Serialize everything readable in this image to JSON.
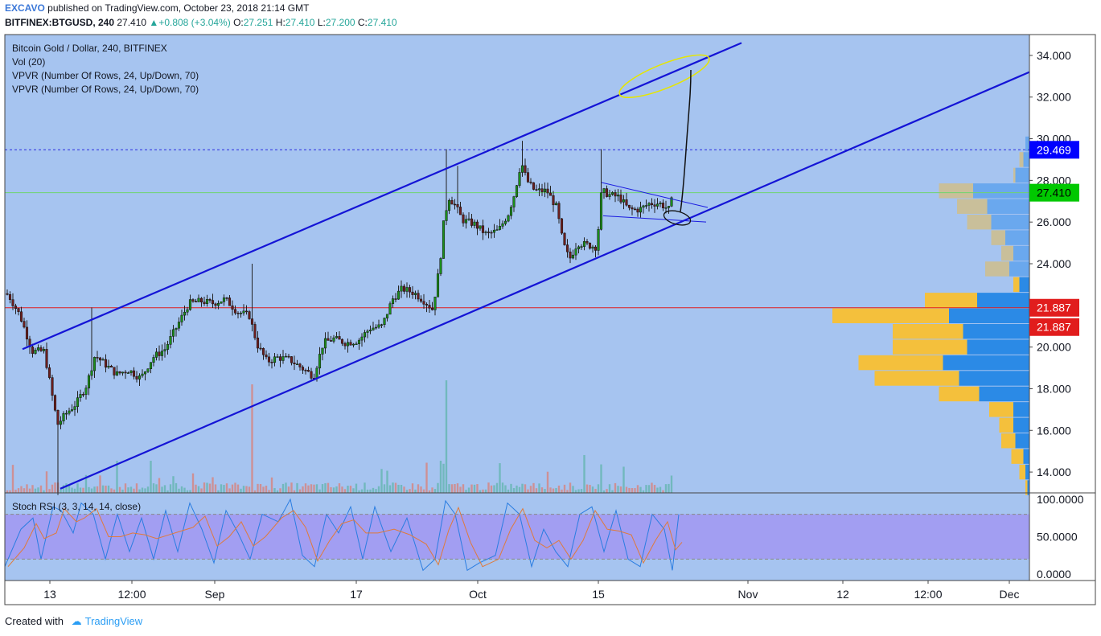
{
  "header": {
    "author": "EXCAVO",
    "published_text": "published on TradingView.com, October 23, 2018 21:14 GMT",
    "symbol": "BITFINEX:BTGUSD, 240",
    "last": "27.410",
    "change": "+0.808 (+3.04%)",
    "open_label": "O:",
    "open": "27.251",
    "high_label": "H:",
    "high": "27.410",
    "low_label": "L:",
    "low": "27.200",
    "close_label": "C:",
    "close": "27.410"
  },
  "legend": {
    "title": "Bitcoin Gold / Dollar, 240, BITFINEX",
    "vol": "Vol (20)",
    "vpvr1": "VPVR (Number Of Rows, 24, Up/Down, 70)",
    "vpvr2": "VPVR (Number Of Rows, 24, Up/Down, 70)",
    "stoch": "Stoch RSI (3, 3, 14, 14, close)"
  },
  "footer": {
    "created_with": "Created with",
    "brand": "TradingView"
  },
  "colors": {
    "price_bg": "#a6c4f0",
    "stoch_bg": "#a6c4f0",
    "stoch_band": "#a29ef2",
    "candle_up": "#1b8e1b",
    "candle_down": "#6b1e1e",
    "channel": "#1414d6",
    "support_line": "#e11d1d",
    "last_price": "#00c800",
    "high_marker": "#0000ff",
    "vpvr_up": "#2b8ae6",
    "vpvr_down": "#f4c03c"
  },
  "chart_data": {
    "type": "candlestick",
    "title": "Bitcoin Gold / Dollar, 240, BITFINEX",
    "y_axis_range": [
      13.0,
      35.0
    ],
    "y_ticks": [
      "34.000",
      "32.000",
      "30.000",
      "28.000",
      "26.000",
      "24.000",
      "22.000",
      "20.000",
      "18.000",
      "16.000",
      "14.000"
    ],
    "x_ticks": [
      "13",
      "12:00",
      "Sep",
      "17",
      "Oct",
      "15",
      "Nov",
      "12",
      "12:00",
      "Dec"
    ],
    "price_labels": [
      {
        "value": "29.469",
        "kind": "high"
      },
      {
        "value": "27.410",
        "kind": "last"
      },
      {
        "value": "21.887",
        "kind": "level"
      },
      {
        "value": "21.887",
        "kind": "level"
      }
    ],
    "close_path": [
      [
        0,
        22.9
      ],
      [
        12,
        22.4
      ],
      [
        25,
        21.5
      ],
      [
        40,
        19.8
      ],
      [
        55,
        19.8
      ],
      [
        68,
        17.0
      ],
      [
        72,
        16.3
      ],
      [
        82,
        16.8
      ],
      [
        95,
        17.3
      ],
      [
        108,
        18.2
      ],
      [
        118,
        19.6
      ],
      [
        130,
        19.2
      ],
      [
        145,
        18.7
      ],
      [
        160,
        18.9
      ],
      [
        175,
        18.5
      ],
      [
        190,
        19.5
      ],
      [
        205,
        19.9
      ],
      [
        220,
        21.0
      ],
      [
        235,
        22.1
      ],
      [
        250,
        22.2
      ],
      [
        265,
        22.1
      ],
      [
        280,
        22.3
      ],
      [
        295,
        21.7
      ],
      [
        310,
        21.5
      ],
      [
        320,
        20.1
      ],
      [
        332,
        19.3
      ],
      [
        345,
        19.5
      ],
      [
        360,
        19.4
      ],
      [
        375,
        19.0
      ],
      [
        390,
        18.6
      ],
      [
        402,
        20.2
      ],
      [
        415,
        20.4
      ],
      [
        430,
        20.2
      ],
      [
        445,
        20.3
      ],
      [
        460,
        20.9
      ],
      [
        475,
        21.0
      ],
      [
        488,
        22.3
      ],
      [
        500,
        22.8
      ],
      [
        515,
        22.6
      ],
      [
        528,
        22.2
      ],
      [
        538,
        21.8
      ],
      [
        547,
        24.0
      ],
      [
        552,
        26.1
      ],
      [
        558,
        27.2
      ],
      [
        566,
        26.8
      ],
      [
        575,
        26.1
      ],
      [
        590,
        25.9
      ],
      [
        605,
        25.4
      ],
      [
        620,
        25.6
      ],
      [
        632,
        26.4
      ],
      [
        640,
        27.4
      ],
      [
        648,
        28.9
      ],
      [
        655,
        28.0
      ],
      [
        665,
        27.5
      ],
      [
        680,
        27.5
      ],
      [
        692,
        26.7
      ],
      [
        700,
        25.0
      ],
      [
        708,
        24.2
      ],
      [
        718,
        25.0
      ],
      [
        730,
        24.9
      ],
      [
        742,
        24.8
      ],
      [
        748,
        27.5
      ],
      [
        758,
        27.3
      ],
      [
        770,
        27.2
      ],
      [
        782,
        26.6
      ],
      [
        795,
        26.6
      ],
      [
        808,
        26.9
      ],
      [
        820,
        26.9
      ],
      [
        832,
        26.6
      ],
      [
        838,
        27.41
      ]
    ],
    "ohlc_last": {
      "open": 27.251,
      "high": 27.41,
      "low": 27.2,
      "close": 27.41
    },
    "annotations": {
      "channel_upper": [
        [
          28,
          19.9
        ],
        [
          922,
          34.6
        ]
      ],
      "channel_lower": [
        [
          75,
          13.2
        ],
        [
          1280,
          33.2
        ]
      ],
      "horizontal_levels": [
        {
          "price": 21.887,
          "color": "red"
        },
        {
          "price": 29.469,
          "color": "blue",
          "dashed": true
        },
        {
          "price": 27.41,
          "color": "green"
        }
      ],
      "triangle": {
        "top": [
          [
            748,
            27.9
          ],
          [
            880,
            26.7
          ]
        ],
        "bottom": [
          [
            750,
            26.3
          ],
          [
            878,
            26.0
          ]
        ]
      }
    },
    "vpvr_rows": [
      {
        "price": 29.75,
        "up": 0.02,
        "down": 0.01
      },
      {
        "price": 29.0,
        "up": 0.03,
        "down": 0.05
      },
      {
        "price": 28.25,
        "up": 0.07,
        "down": 0.08
      },
      {
        "price": 27.5,
        "up": 0.28,
        "down": 0.45
      },
      {
        "price": 26.75,
        "up": 0.21,
        "down": 0.36
      },
      {
        "price": 26.0,
        "up": 0.19,
        "down": 0.31
      },
      {
        "price": 25.25,
        "up": 0.12,
        "down": 0.19
      },
      {
        "price": 24.5,
        "up": 0.08,
        "down": 0.14
      },
      {
        "price": 23.75,
        "up": 0.1,
        "down": 0.22
      },
      {
        "price": 23.0,
        "up": 0.05,
        "down": 0.08
      },
      {
        "price": 22.25,
        "up": 0.26,
        "down": 0.52
      },
      {
        "price": 21.5,
        "up": 0.4,
        "down": 0.98
      },
      {
        "price": 20.75,
        "up": 0.33,
        "down": 0.68
      },
      {
        "price": 20.0,
        "up": 0.31,
        "down": 0.68
      },
      {
        "price": 19.25,
        "up": 0.43,
        "down": 0.85
      },
      {
        "price": 18.5,
        "up": 0.35,
        "down": 0.77
      },
      {
        "price": 17.75,
        "up": 0.25,
        "down": 0.45
      },
      {
        "price": 17.0,
        "up": 0.08,
        "down": 0.2
      },
      {
        "price": 16.25,
        "up": 0.08,
        "down": 0.15
      },
      {
        "price": 15.5,
        "up": 0.07,
        "down": 0.14
      },
      {
        "price": 14.75,
        "up": 0.03,
        "down": 0.09
      },
      {
        "price": 14.0,
        "up": 0.02,
        "down": 0.05
      },
      {
        "price": 13.25,
        "up": 0.01,
        "down": 0.02
      }
    ],
    "stoch_rsi": {
      "y_ticks": [
        "100.0000",
        "50.0000",
        "0.0000"
      ],
      "overbought": 80,
      "oversold": 20,
      "k_path": [
        [
          0,
          10
        ],
        [
          20,
          60
        ],
        [
          35,
          75
        ],
        [
          45,
          20
        ],
        [
          60,
          90
        ],
        [
          70,
          85
        ],
        [
          85,
          55
        ],
        [
          95,
          95
        ],
        [
          110,
          80
        ],
        [
          125,
          20
        ],
        [
          140,
          80
        ],
        [
          155,
          30
        ],
        [
          170,
          75
        ],
        [
          185,
          20
        ],
        [
          200,
          85
        ],
        [
          215,
          30
        ],
        [
          230,
          95
        ],
        [
          245,
          60
        ],
        [
          260,
          15
        ],
        [
          275,
          85
        ],
        [
          290,
          55
        ],
        [
          305,
          20
        ],
        [
          320,
          80
        ],
        [
          340,
          70
        ],
        [
          355,
          100
        ],
        [
          370,
          25
        ],
        [
          385,
          10
        ],
        [
          400,
          80
        ],
        [
          415,
          55
        ],
        [
          430,
          90
        ],
        [
          445,
          20
        ],
        [
          460,
          90
        ],
        [
          480,
          30
        ],
        [
          500,
          75
        ],
        [
          520,
          5
        ],
        [
          535,
          20
        ],
        [
          548,
          98
        ],
        [
          560,
          80
        ],
        [
          575,
          5
        ],
        [
          590,
          15
        ],
        [
          610,
          25
        ],
        [
          625,
          95
        ],
        [
          640,
          80
        ],
        [
          655,
          10
        ],
        [
          670,
          60
        ],
        [
          685,
          30
        ],
        [
          700,
          10
        ],
        [
          715,
          80
        ],
        [
          730,
          90
        ],
        [
          745,
          30
        ],
        [
          760,
          85
        ],
        [
          775,
          20
        ],
        [
          790,
          10
        ],
        [
          805,
          80
        ],
        [
          820,
          60
        ],
        [
          830,
          5
        ],
        [
          838,
          80
        ]
      ]
    }
  }
}
